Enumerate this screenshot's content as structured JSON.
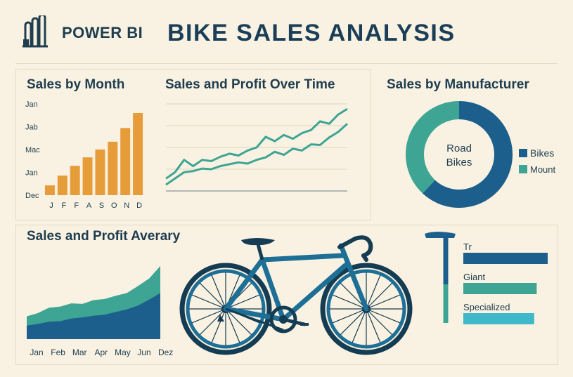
{
  "header": {
    "brand": "POWER BI",
    "title": "BIKE SALES ANALYSIS"
  },
  "colors": {
    "background": "#f9f2e2",
    "orange": "#e69c38",
    "teal": "#3ea594",
    "navy": "#1d5f8c",
    "light_teal": "#3fb8c9",
    "text": "#1f3d4f"
  },
  "panels": {
    "sales_by_month": {
      "title": "Sales by Month"
    },
    "sales_profit_time": {
      "title": "Sales and Profit Over Time"
    },
    "sales_by_manufacturer": {
      "title": "Sales by Manufacturer"
    },
    "sales_profit_average": {
      "title": "Sales and Profit Averary"
    },
    "illustration": {
      "name": "bicycle-illustration"
    }
  },
  "chart_data": [
    {
      "id": "sales_by_month",
      "type": "bar",
      "title": "Sales by Month",
      "categories": [
        "J",
        "F",
        "F",
        "A",
        "S",
        "O",
        "N",
        "D"
      ],
      "values": [
        1.5,
        3,
        4.5,
        5.8,
        7,
        8.2,
        10.3,
        12.6
      ],
      "y_tick_labels": [
        "Dec",
        "Jan",
        "Mac",
        "Jab",
        "Jan"
      ],
      "ylim": [
        0,
        14
      ],
      "color": "#e69c38"
    },
    {
      "id": "sales_profit_time",
      "type": "line",
      "title": "Sales and Profit Over Time",
      "x": [
        0,
        1,
        2,
        3,
        4,
        5,
        6,
        7,
        8,
        9,
        10,
        11,
        12,
        13,
        14,
        15,
        16,
        17,
        18,
        19,
        20
      ],
      "series": [
        {
          "values": [
            2,
            3,
            5,
            4,
            5,
            4.8,
            5.5,
            6,
            5.7,
            6.5,
            7,
            8.7,
            8,
            9,
            8.4,
            9.3,
            9.8,
            11.2,
            10.8,
            12.3,
            13.2
          ],
          "color": "#3ea594"
        },
        {
          "values": [
            1,
            2,
            3,
            3.2,
            3.6,
            3.5,
            4,
            4.3,
            4.6,
            4.4,
            5,
            5.4,
            6.3,
            5.8,
            6.8,
            6.5,
            7.5,
            7.4,
            8.6,
            9.5,
            10.8
          ],
          "color": "#3ea594"
        }
      ],
      "ylim": [
        0,
        14
      ],
      "grid": true
    },
    {
      "id": "sales_by_manufacturer",
      "type": "pie",
      "title": "Sales by Manufacturer",
      "center_label": [
        "Road",
        "Bikes"
      ],
      "slices": [
        {
          "label": "Bikes",
          "value": 62,
          "color": "#1d5f8c"
        },
        {
          "label": "Mount",
          "value": 38,
          "color": "#3ea594"
        }
      ],
      "legend": "right"
    },
    {
      "id": "sales_profit_average",
      "type": "area",
      "title": "Sales and Profit Averary",
      "categories": [
        "Jan",
        "Feb",
        "Mar",
        "Apr",
        "May",
        "Jun",
        "Dez"
      ],
      "x": [
        0,
        0.5,
        1,
        1.5,
        2,
        2.5,
        3,
        3.5,
        4,
        4.5,
        5,
        5.5,
        6
      ],
      "series": [
        {
          "values": [
            4.2,
            4.8,
            5.8,
            6,
            6.6,
            6.5,
            7.2,
            7.4,
            8,
            8.5,
            9.8,
            11.2,
            13.5
          ],
          "color": "#3ea594"
        },
        {
          "values": [
            2.5,
            2.8,
            3.2,
            3.3,
            3.8,
            4,
            4.3,
            4.5,
            5,
            5.5,
            6.2,
            7.3,
            8.5
          ],
          "color": "#1d5f8c"
        }
      ],
      "ylim": [
        0,
        14
      ]
    },
    {
      "id": "manufacturer_bars",
      "type": "bar",
      "orientation": "horizontal",
      "categories": [
        "Tr",
        "Giant",
        "Specialized"
      ],
      "values": [
        100,
        87,
        84
      ],
      "colors": [
        "#1d5f8c",
        "#3ea594",
        "#3fb8c9"
      ],
      "xlim": [
        0,
        100
      ]
    }
  ]
}
